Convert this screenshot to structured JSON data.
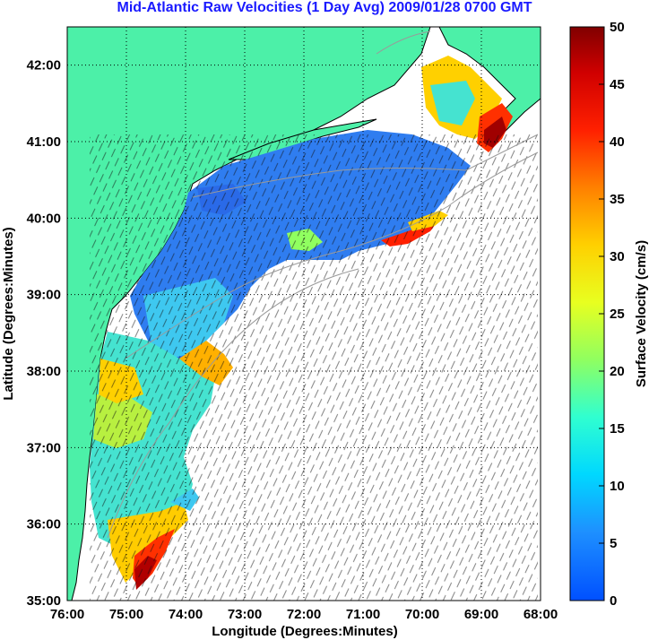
{
  "title": "Mid-Atlantic Raw Velocities (1 Day Avg) 2009/01/28 0700 GMT",
  "map": {
    "xlabel": "Longitude (Degrees:Minutes)",
    "ylabel": "Latitude (Degrees:Minutes)",
    "lon_ticks": [
      "76:00",
      "75:00",
      "74:00",
      "73:00",
      "72:00",
      "71:00",
      "70:00",
      "69:00",
      "68:00"
    ],
    "lat_ticks": [
      "42:00",
      "41:00",
      "40:00",
      "39:00",
      "38:00",
      "37:00",
      "36:00",
      "35:00"
    ],
    "lon_range": [
      -76,
      -68
    ],
    "lat_range": [
      35,
      42.5
    ],
    "grid": "dotted",
    "land_color": "#4cf0a8",
    "coastline_color": "#000000",
    "bathymetry_color": "#9a9a9a"
  },
  "colorbar": {
    "label": "Surface Velocity (cm/s)",
    "tick_labels": [
      "50",
      "45",
      "40",
      "35",
      "30",
      "25",
      "20",
      "15",
      "10",
      "5",
      "0"
    ],
    "range": [
      0,
      50
    ],
    "colormap": "jet"
  }
}
